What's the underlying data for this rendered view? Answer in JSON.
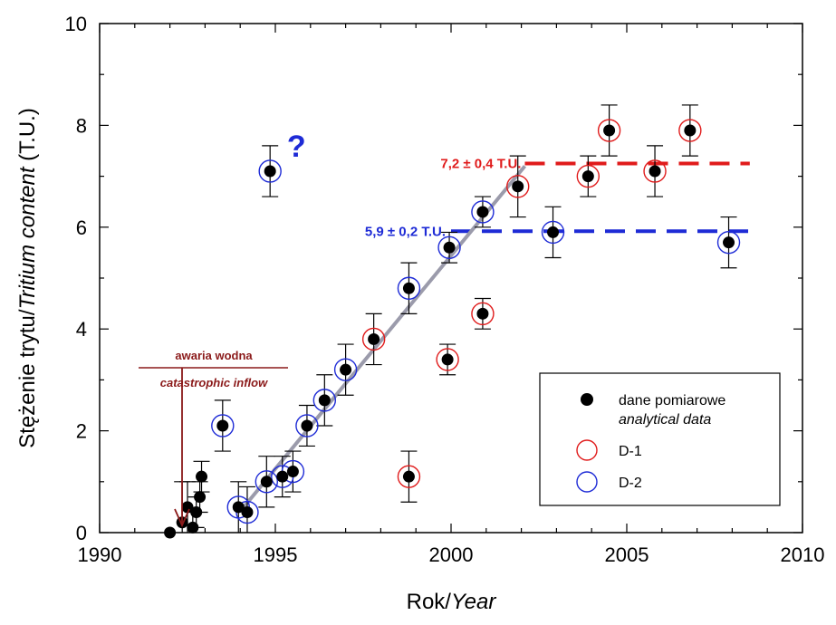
{
  "chart_data": {
    "type": "scatter",
    "xlabel_plain": "Rok/",
    "xlabel_italic": "Year",
    "ylabel_plain": "Stężenie trytu/",
    "ylabel_italic": "Tritium content",
    "ylabel_unit": " (T.U.)",
    "xlim": [
      1990,
      2010
    ],
    "ylim": [
      0,
      10
    ],
    "xticks": [
      1990,
      1995,
      2000,
      2005,
      2010
    ],
    "yticks": [
      0,
      2,
      4,
      6,
      8,
      10
    ],
    "legend_position": "bottom-right",
    "series": [
      {
        "name": "dane pomiarowe",
        "name_en": "analytical data",
        "marker": "filled-circle",
        "color": "#000000",
        "points": [
          {
            "x": 1992.0,
            "y": 0.0
          },
          {
            "x": 1992.35,
            "y": 0.2,
            "err": 0.8
          },
          {
            "x": 1992.5,
            "y": 0.5,
            "err": 0.5
          },
          {
            "x": 1992.65,
            "y": 0.1,
            "err": 0.3
          },
          {
            "x": 1992.75,
            "y": 0.4,
            "err": 0.3
          },
          {
            "x": 1992.85,
            "y": 0.7,
            "err": 0.3
          },
          {
            "x": 1992.9,
            "y": 1.1,
            "err": 0.3
          },
          {
            "x": 1993.5,
            "y": 2.1,
            "err": 0.5
          },
          {
            "x": 1993.95,
            "y": 0.5,
            "err": 0.5
          },
          {
            "x": 1994.2,
            "y": 0.4,
            "err": 0.5
          },
          {
            "x": 1994.75,
            "y": 1.0,
            "err": 0.5
          },
          {
            "x": 1994.85,
            "y": 7.1,
            "err": 0.5
          },
          {
            "x": 1995.2,
            "y": 1.1,
            "err": 0.4
          },
          {
            "x": 1995.5,
            "y": 1.2,
            "err": 0.4
          },
          {
            "x": 1995.9,
            "y": 2.1,
            "err": 0.4
          },
          {
            "x": 1996.4,
            "y": 2.6,
            "err": 0.5
          },
          {
            "x": 1997.0,
            "y": 3.2,
            "err": 0.5
          },
          {
            "x": 1997.8,
            "y": 3.8,
            "err": 0.5
          },
          {
            "x": 1998.8,
            "y": 1.1,
            "err": 0.5
          },
          {
            "x": 1998.8,
            "y": 4.8,
            "err": 0.5
          },
          {
            "x": 1999.9,
            "y": 3.4,
            "err": 0.3
          },
          {
            "x": 1999.95,
            "y": 5.6,
            "err": 0.3
          },
          {
            "x": 2000.9,
            "y": 4.3,
            "err": 0.3
          },
          {
            "x": 2000.9,
            "y": 6.3,
            "err": 0.3
          },
          {
            "x": 2001.9,
            "y": 6.8,
            "err": 0.6
          },
          {
            "x": 2002.9,
            "y": 5.9,
            "err": 0.5
          },
          {
            "x": 2003.9,
            "y": 7.0,
            "err": 0.4
          },
          {
            "x": 2004.5,
            "y": 7.9,
            "err": 0.5
          },
          {
            "x": 2005.8,
            "y": 7.1,
            "err": 0.5
          },
          {
            "x": 2006.8,
            "y": 7.9,
            "err": 0.5
          },
          {
            "x": 2007.9,
            "y": 5.7,
            "err": 0.5
          }
        ]
      },
      {
        "name": "D-1",
        "marker": "open-circle",
        "color": "#e01b1b",
        "points": [
          {
            "x": 1997.8,
            "y": 3.8
          },
          {
            "x": 1998.8,
            "y": 1.1
          },
          {
            "x": 1999.9,
            "y": 3.4
          },
          {
            "x": 2000.9,
            "y": 4.3
          },
          {
            "x": 2001.9,
            "y": 6.8
          },
          {
            "x": 2003.9,
            "y": 7.0
          },
          {
            "x": 2004.5,
            "y": 7.9
          },
          {
            "x": 2005.8,
            "y": 7.1
          },
          {
            "x": 2006.8,
            "y": 7.9
          }
        ]
      },
      {
        "name": "D-2",
        "marker": "open-circle",
        "color": "#1e2bd6",
        "points": [
          {
            "x": 1993.5,
            "y": 2.1
          },
          {
            "x": 1993.95,
            "y": 0.5
          },
          {
            "x": 1994.2,
            "y": 0.4
          },
          {
            "x": 1994.75,
            "y": 1.0
          },
          {
            "x": 1994.85,
            "y": 7.1
          },
          {
            "x": 1995.2,
            "y": 1.1
          },
          {
            "x": 1995.5,
            "y": 1.2
          },
          {
            "x": 1995.9,
            "y": 2.1
          },
          {
            "x": 1996.4,
            "y": 2.6
          },
          {
            "x": 1997.0,
            "y": 3.2
          },
          {
            "x": 1998.8,
            "y": 4.8
          },
          {
            "x": 1999.95,
            "y": 5.6
          },
          {
            "x": 2000.9,
            "y": 6.3
          },
          {
            "x": 2002.9,
            "y": 5.9
          },
          {
            "x": 2007.9,
            "y": 5.7
          }
        ]
      }
    ],
    "trend_line": {
      "color": "#9b9bab",
      "from": {
        "x": 1994.1,
        "y": 0.5
      },
      "to": {
        "x": 2002.1,
        "y": 7.2
      }
    },
    "reference_lines": [
      {
        "label": "7,2 ± 0,4 T.U.",
        "y": 7.25,
        "x_start": 2002.1,
        "x_end": 2008.5,
        "color": "#e01b1b",
        "style": "dashed"
      },
      {
        "label": "5,9 ± 0,2 T.U.",
        "y": 5.92,
        "x_start": 2000.0,
        "x_end": 2008.5,
        "color": "#1e2bd6",
        "style": "dashed"
      }
    ],
    "annotations": {
      "event_pl": "awaria wodna",
      "event_en": "catastrophic inflow",
      "event_x": 1992.5,
      "question_mark": "?",
      "question_x": 1995.6,
      "question_y": 7.6
    }
  }
}
